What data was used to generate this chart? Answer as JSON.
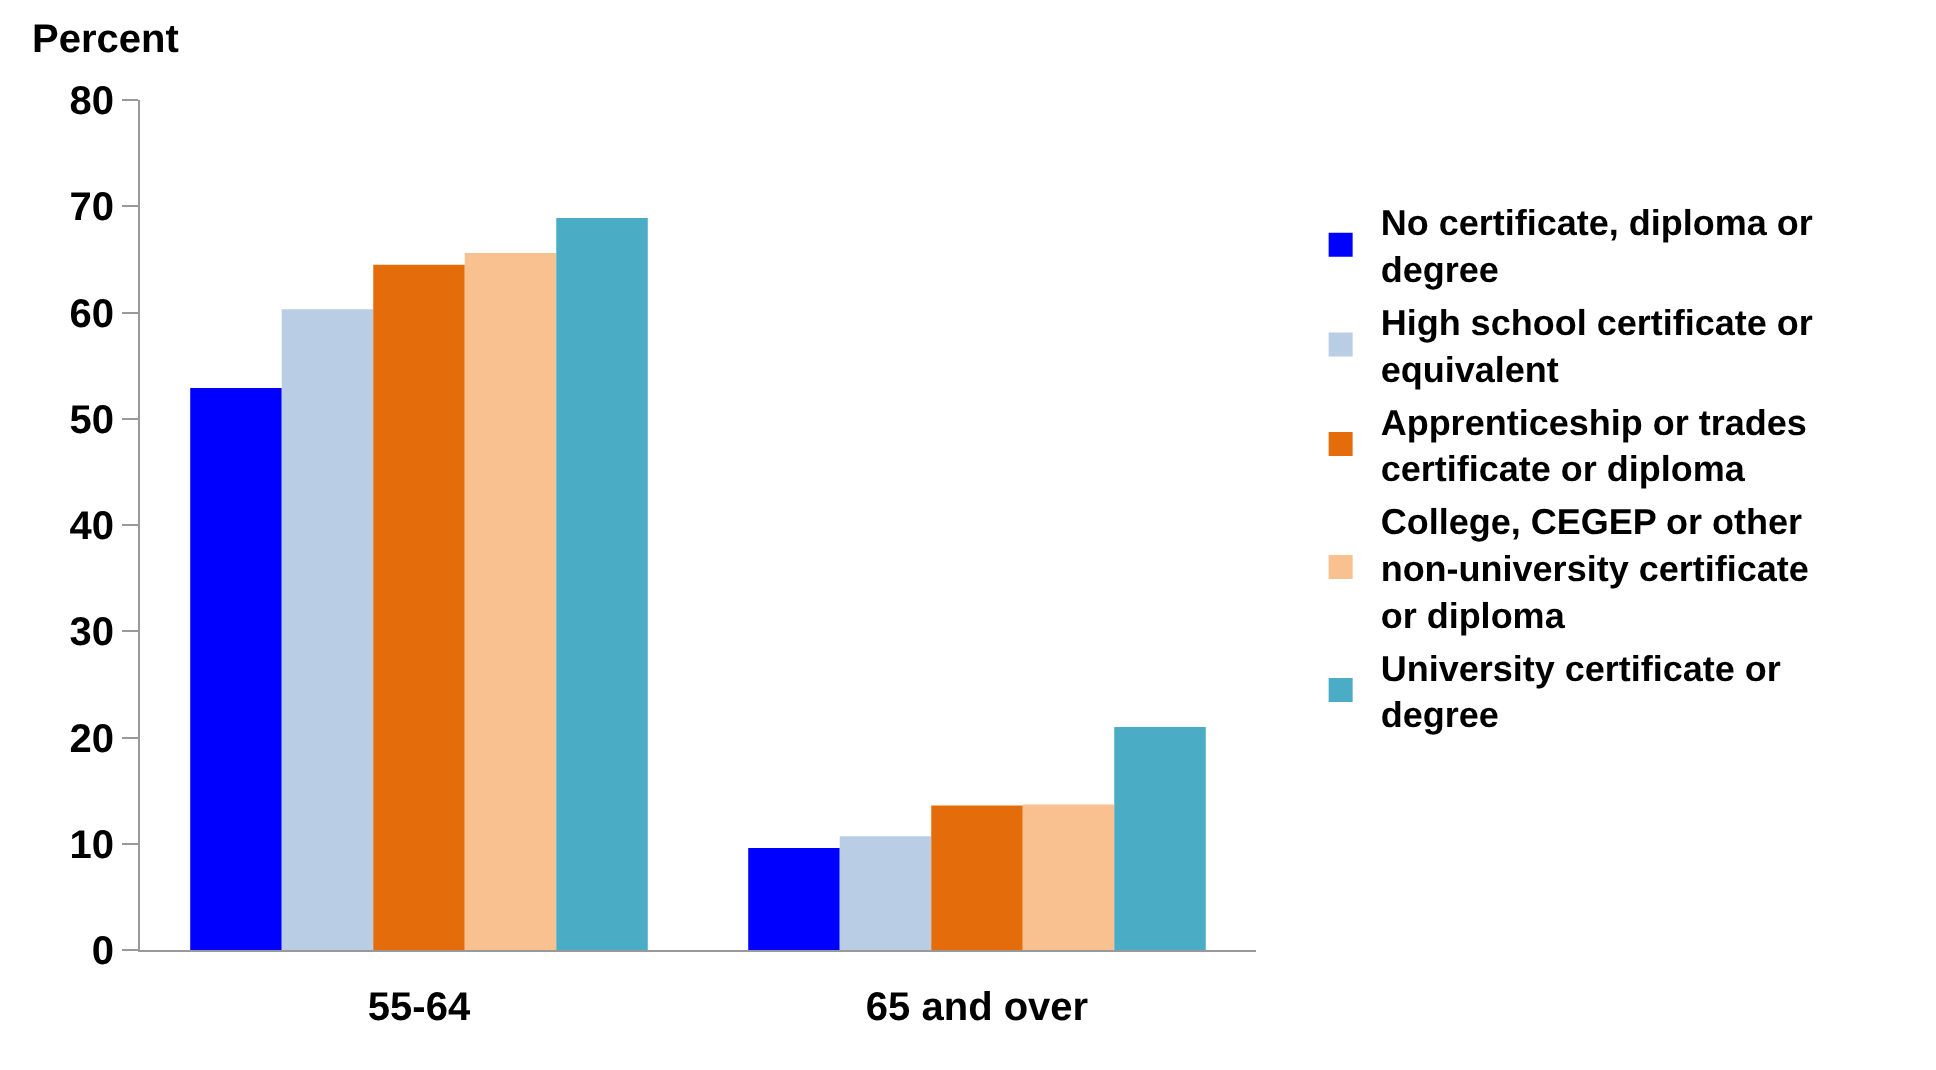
{
  "chart_data": {
    "type": "bar",
    "ylabel": "Percent",
    "categories": [
      "55-64",
      "65 and over"
    ],
    "series": [
      {
        "name": "No certificate, diploma or degree",
        "color": "#0000ff",
        "values": [
          52.9,
          9.6
        ]
      },
      {
        "name": "High school certificate or equivalent",
        "color": "#b9cde5",
        "values": [
          60.3,
          10.7
        ]
      },
      {
        "name": "Apprenticeship or trades certificate or diploma",
        "color": "#e46c0a",
        "values": [
          64.5,
          13.6
        ]
      },
      {
        "name": "College, CEGEP or other non-university certificate or diploma",
        "color": "#f9c090",
        "values": [
          65.6,
          13.7
        ]
      },
      {
        "name": "University certificate or degree",
        "color": "#4bacc6",
        "values": [
          68.9,
          21.0
        ]
      }
    ],
    "ylim": [
      0,
      80
    ],
    "yticks": [
      0,
      10,
      20,
      30,
      40,
      50,
      60,
      70,
      80
    ],
    "legend": "right"
  }
}
